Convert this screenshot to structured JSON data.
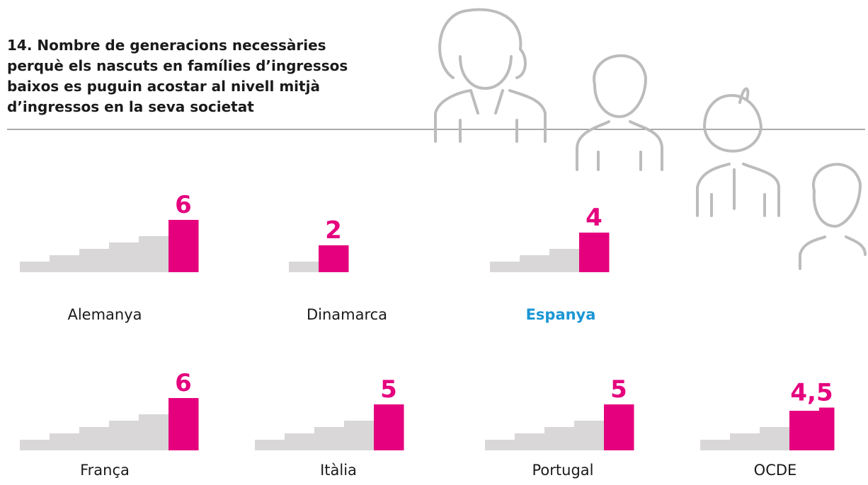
{
  "chart_data": {
    "type": "staircase",
    "title": "14. Nombre de generacions necessàries perquè els nascuts en famílies d’ingressos baixos es puguin acostar al nivell mitjà d’ingressos en la seva societat",
    "categories": [
      "Alemanya",
      "Dinamarca",
      "Espanya",
      "França",
      "Itàlia",
      "Portugal",
      "OCDE"
    ],
    "values": [
      6,
      2,
      4,
      6,
      5,
      5,
      4.5
    ],
    "value_labels": [
      "6",
      "2",
      "4",
      "6",
      "5",
      "5",
      "4,5"
    ],
    "color": "#e5007e",
    "step_color": "#d9d7d7",
    "highlight": "Espanya",
    "highlight_color": "#1a96d4"
  }
}
